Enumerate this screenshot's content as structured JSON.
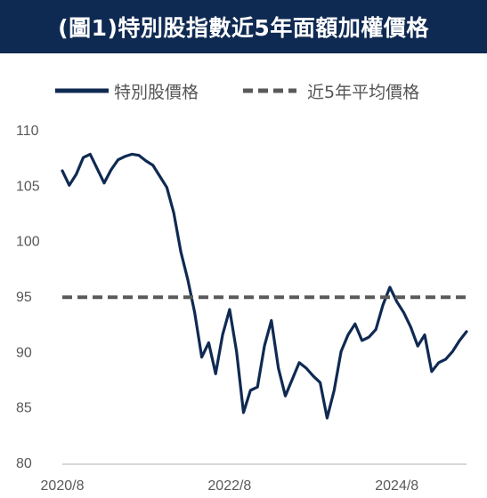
{
  "header": {
    "title": "(圖1)特別股指數近5年面額加權價格"
  },
  "colors": {
    "title_bg": "#0f2a52",
    "series_line": "#0f2a52",
    "avg_line": "#595959",
    "axis": "#bfbfbf"
  },
  "legend": {
    "items": [
      {
        "label": "特別股價格",
        "style": "solid"
      },
      {
        "label": "近5年平均價格",
        "style": "dashed"
      }
    ],
    "placement": "top"
  },
  "chart_data": {
    "type": "line",
    "title": "(圖1)特別股指數近5年面額加權價格",
    "xlabel": "",
    "ylabel": "",
    "ylim": [
      80,
      110
    ],
    "yticks": [
      80,
      85,
      90,
      95,
      100,
      105,
      110
    ],
    "xticks": [
      {
        "date": "2020-08",
        "label": "2020/8"
      },
      {
        "date": "2022-08",
        "label": "2022/8"
      },
      {
        "date": "2024-08",
        "label": "2024/8"
      }
    ],
    "xlim": [
      "2020-08",
      "2025-06"
    ],
    "grid": false,
    "series": [
      {
        "name": "特別股價格",
        "style": "solid",
        "points": [
          [
            "2020-08",
            106.3
          ],
          [
            "2020-09",
            105.0
          ],
          [
            "2020-10",
            106.0
          ],
          [
            "2020-11",
            107.5
          ],
          [
            "2020-12",
            107.8
          ],
          [
            "2021-01",
            106.5
          ],
          [
            "2021-02",
            105.2
          ],
          [
            "2021-03",
            106.4
          ],
          [
            "2021-04",
            107.3
          ],
          [
            "2021-05",
            107.6
          ],
          [
            "2021-06",
            107.8
          ],
          [
            "2021-07",
            107.7
          ],
          [
            "2021-08",
            107.2
          ],
          [
            "2021-09",
            106.8
          ],
          [
            "2021-10",
            105.8
          ],
          [
            "2021-11",
            104.8
          ],
          [
            "2021-12",
            102.5
          ],
          [
            "2022-01",
            99.0
          ],
          [
            "2022-02",
            96.5
          ],
          [
            "2022-03",
            93.5
          ],
          [
            "2022-04",
            89.5
          ],
          [
            "2022-05",
            90.8
          ],
          [
            "2022-06",
            88.0
          ],
          [
            "2022-07",
            91.5
          ],
          [
            "2022-08",
            93.8
          ],
          [
            "2022-09",
            90.0
          ],
          [
            "2022-10",
            84.5
          ],
          [
            "2022-11",
            86.5
          ],
          [
            "2022-12",
            86.8
          ],
          [
            "2023-01",
            90.5
          ],
          [
            "2023-02",
            92.8
          ],
          [
            "2023-03",
            88.5
          ],
          [
            "2023-04",
            86.0
          ],
          [
            "2023-05",
            87.5
          ],
          [
            "2023-06",
            89.0
          ],
          [
            "2023-07",
            88.5
          ],
          [
            "2023-08",
            87.8
          ],
          [
            "2023-09",
            87.2
          ],
          [
            "2023-10",
            84.0
          ],
          [
            "2023-11",
            86.5
          ],
          [
            "2023-12",
            90.0
          ],
          [
            "2024-01",
            91.5
          ],
          [
            "2024-02",
            92.5
          ],
          [
            "2024-03",
            91.0
          ],
          [
            "2024-04",
            91.3
          ],
          [
            "2024-05",
            92.0
          ],
          [
            "2024-06",
            94.2
          ],
          [
            "2024-07",
            95.8
          ],
          [
            "2024-08",
            94.5
          ],
          [
            "2024-09",
            93.5
          ],
          [
            "2024-10",
            92.2
          ],
          [
            "2024-11",
            90.5
          ],
          [
            "2024-12",
            91.5
          ],
          [
            "2025-01",
            88.2
          ],
          [
            "2025-02",
            89.0
          ],
          [
            "2025-03",
            89.3
          ],
          [
            "2025-04",
            90.0
          ],
          [
            "2025-05",
            91.0
          ],
          [
            "2025-06",
            91.8
          ]
        ]
      },
      {
        "name": "近5年平均價格",
        "style": "dashed",
        "points": [
          [
            "2020-08",
            94.9
          ],
          [
            "2025-06",
            94.9
          ]
        ]
      }
    ]
  }
}
